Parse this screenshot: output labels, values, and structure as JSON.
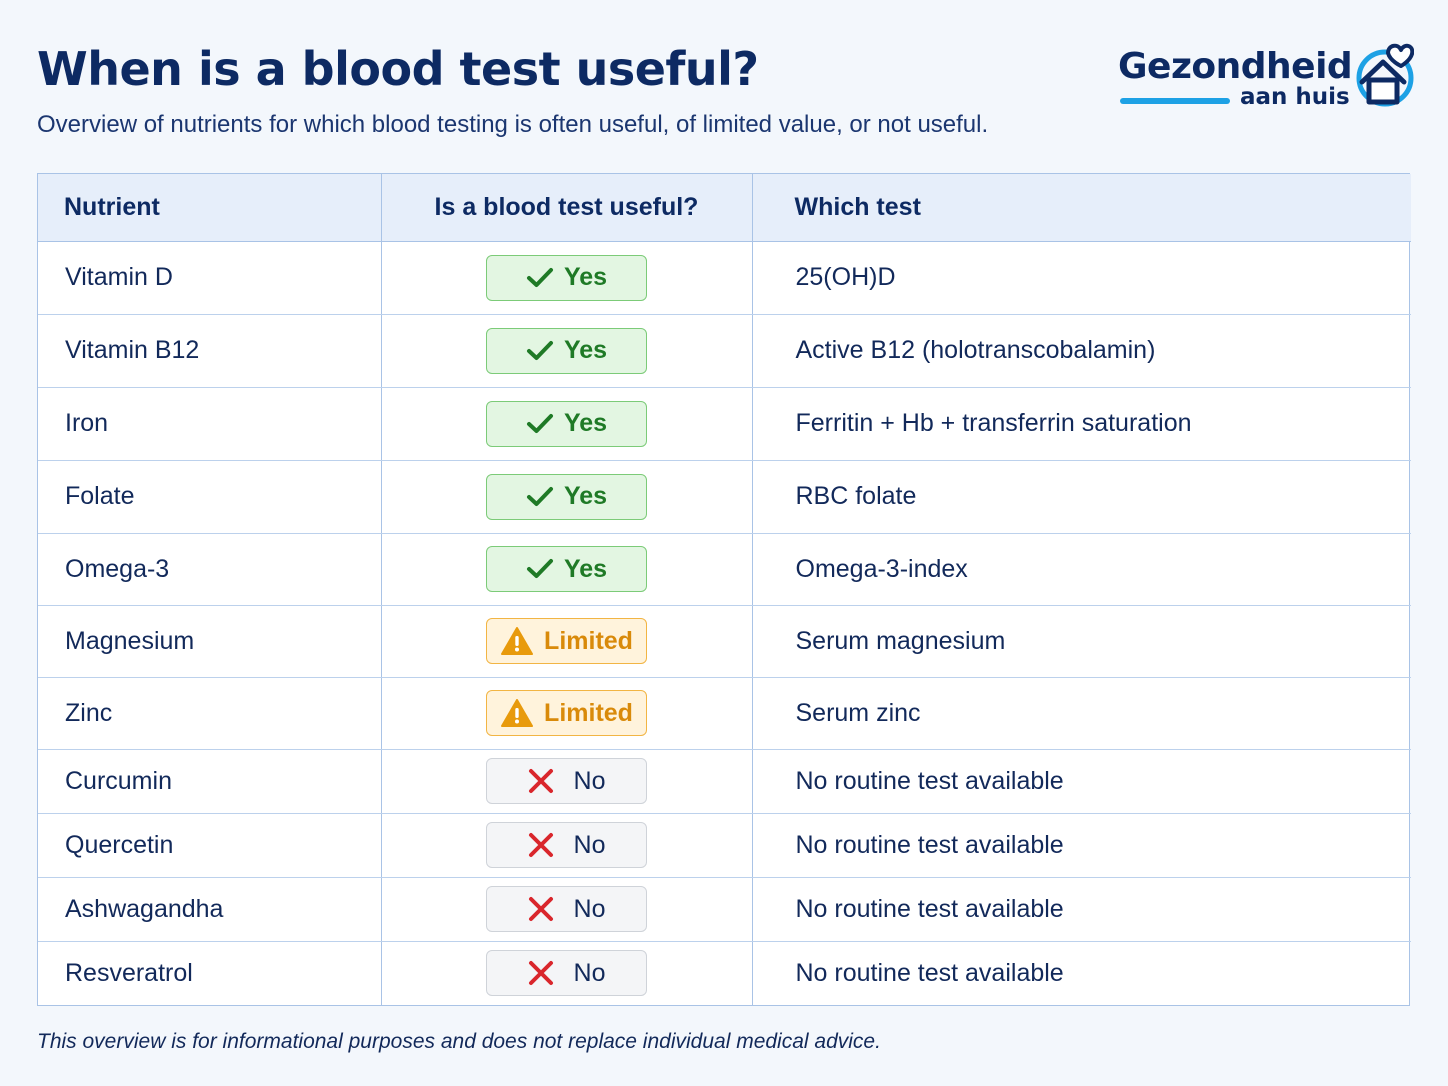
{
  "header": {
    "title": "When is a blood test useful?",
    "subtitle": "Overview of nutrients for which blood testing is often useful, of limited value, or not useful."
  },
  "logo": {
    "name": "Gezondheid",
    "tagline": "aan huis",
    "accent_color": "#1da1e5",
    "icon": "house-heart-icon"
  },
  "table": {
    "columns": [
      "Nutrient",
      "Is a blood test useful?",
      "Which test"
    ],
    "rows": [
      {
        "nutrient": "Vitamin D",
        "status": "yes",
        "label": "Yes",
        "test": "25(OH)D"
      },
      {
        "nutrient": "Vitamin B12",
        "status": "yes",
        "label": "Yes",
        "test": "Active B12 (holotranscobalamin)"
      },
      {
        "nutrient": "Iron",
        "status": "yes",
        "label": "Yes",
        "test": "Ferritin + Hb + transferrin saturation"
      },
      {
        "nutrient": "Folate",
        "status": "yes",
        "label": "Yes",
        "test": "RBC folate"
      },
      {
        "nutrient": "Omega-3",
        "status": "yes",
        "label": "Yes",
        "test": "Omega-3-index"
      },
      {
        "nutrient": "Magnesium",
        "status": "limited",
        "label": "Limited",
        "test": "Serum magnesium"
      },
      {
        "nutrient": "Zinc",
        "status": "limited",
        "label": "Limited",
        "test": "Serum zinc"
      },
      {
        "nutrient": "Curcumin",
        "status": "no",
        "label": "No",
        "test": "No routine test available"
      },
      {
        "nutrient": "Quercetin",
        "status": "no",
        "label": "No",
        "test": "No routine test available"
      },
      {
        "nutrient": "Ashwagandha",
        "status": "no",
        "label": "No",
        "test": "No routine test available"
      },
      {
        "nutrient": "Resveratrol",
        "status": "no",
        "label": "No",
        "test": "No routine test available"
      }
    ]
  },
  "status_colors": {
    "yes": "#1f7a26",
    "limited": "#e89a0c",
    "no": "#d9262c"
  },
  "footnote": "This overview is for informational purposes and does not replace individual medical advice."
}
